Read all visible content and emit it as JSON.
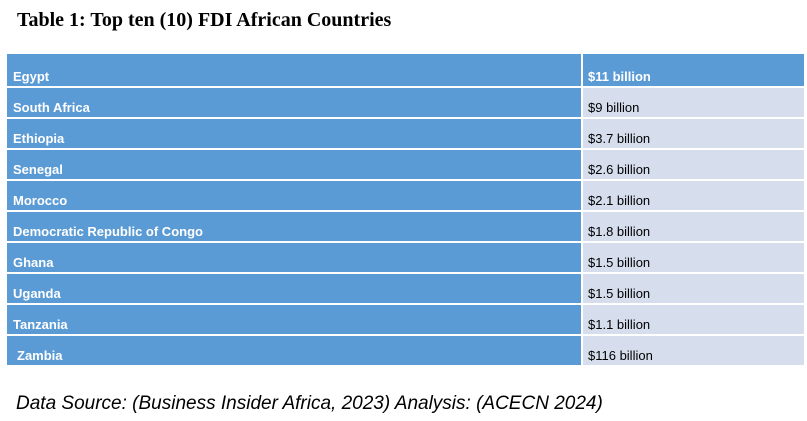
{
  "title": "Table 1: Top ten (10) FDI African Countries",
  "rows": [
    {
      "country": "Egypt",
      "value": "$11 billion"
    },
    {
      "country": "South Africa",
      "value": "$9 billion"
    },
    {
      "country": "Ethiopia",
      "value": "$3.7 billion"
    },
    {
      "country": "Senegal",
      "value": "$2.6 billion"
    },
    {
      "country": "Morocco",
      "value": "$2.1 billion"
    },
    {
      "country": "Democratic Republic of Congo",
      "value": "$1.8 billion"
    },
    {
      "country": "Ghana",
      "value": "$1.5 billion"
    },
    {
      "country": "Uganda",
      "value": "$1.5 billion"
    },
    {
      "country": "Tanzania",
      "value": "$1.1 billion"
    },
    {
      "country": " Zambia",
      "value": "$116 billion"
    }
  ],
  "source": "Data Source: (Business Insider Africa, 2023) Analysis: (ACECN 2024)",
  "colors": {
    "header_blue": "#5b9bd5",
    "row_light": "#d6deee"
  }
}
